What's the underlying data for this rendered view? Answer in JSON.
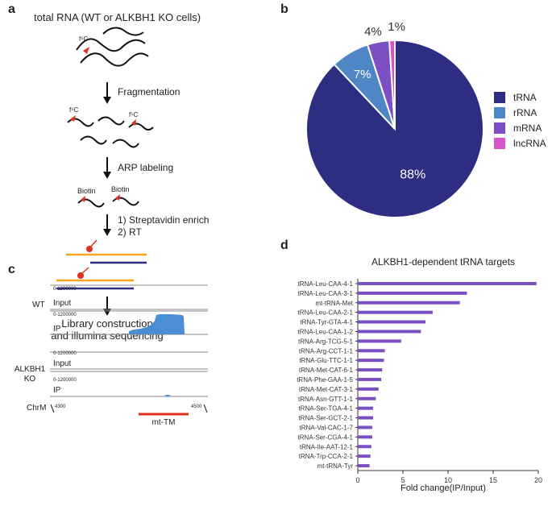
{
  "panel_a": {
    "label": "a",
    "title": "total RNA (WT or ALKBH1 KO cells)",
    "mod_mark": "f⁵C",
    "step1": "Fragmentation",
    "step2": "ARP labeling",
    "biotin": "Biotin",
    "step3_line1": "1) Streptavidin enrich",
    "step3_line2": "2) RT",
    "final_line1": "Library construction",
    "final_line2": "and illumina sequencing"
  },
  "panel_b": {
    "label": "b",
    "chart_data": {
      "type": "pie",
      "labels": [
        "tRNA",
        "rRNA",
        "mRNA",
        "lncRNA"
      ],
      "values": [
        88,
        7,
        4,
        1
      ],
      "value_labels": [
        "88%",
        "7%",
        "4%",
        "1%"
      ],
      "colors": [
        "#2d2e82",
        "#4f86c6",
        "#7c4fc4",
        "#d655c8"
      ],
      "legend_position": "right"
    }
  },
  "panel_c": {
    "label": "c",
    "range_label": "0-1200000",
    "wt_label": "WT",
    "ko_label_line1": "ALKBH1",
    "ko_label_line2": "KO",
    "input_label": "Input",
    "ip_label": "IP",
    "chrom_label": "ChrM",
    "coord_start": "4300",
    "coord_end": "4500",
    "gene_label": "mt-TM",
    "track_color": "#4a8fd4",
    "gene_color": "#e0301e"
  },
  "panel_d": {
    "label": "d",
    "chart_data": {
      "type": "bar",
      "orientation": "horizontal",
      "title": "ALKBH1-dependent tRNA targets",
      "xlabel": "Fold change(IP/Input)",
      "xlim": [
        0,
        20
      ],
      "xticks": [
        "0",
        "5",
        "10",
        "15",
        "20"
      ],
      "bar_color": "#7b4fc2",
      "categories": [
        "tRNA-Leu-CAA-4-1",
        "tRNA-Leu-CAA-3-1",
        "mt-tRNA-Met",
        "tRNA-Leu-CAA-2-1",
        "tRNA-Tyr-GTA-4-1",
        "tRNA-Leu-CAA-1-2",
        "tRNA-Arg-TCG-5-1",
        "tRNA-Arg-CCT-1-1",
        "tRNA-Glu-TTC-1-1",
        "tRNA-Met-CAT-6-1",
        "tRNA-Phe-GAA-1-5",
        "tRNA-Met-CAT-3-1",
        "tRNA-Asn-GTT-1-1",
        "tRNA-Ser-TGA-4-1",
        "tRNA-Ser-GCT-2-1",
        "tRNA-Val-CAC-1-7",
        "tRNA-Ser-CGA-4-1",
        "tRNA-Ile-AAT-12-1",
        "tRNA-Trp-CCA-2-1",
        "mt-tRNA-Tyr"
      ],
      "values": [
        19.8,
        12.1,
        11.3,
        8.3,
        7.5,
        7.0,
        4.8,
        3.0,
        2.9,
        2.7,
        2.6,
        2.3,
        2.0,
        1.7,
        1.7,
        1.6,
        1.6,
        1.5,
        1.4,
        1.3
      ]
    }
  }
}
